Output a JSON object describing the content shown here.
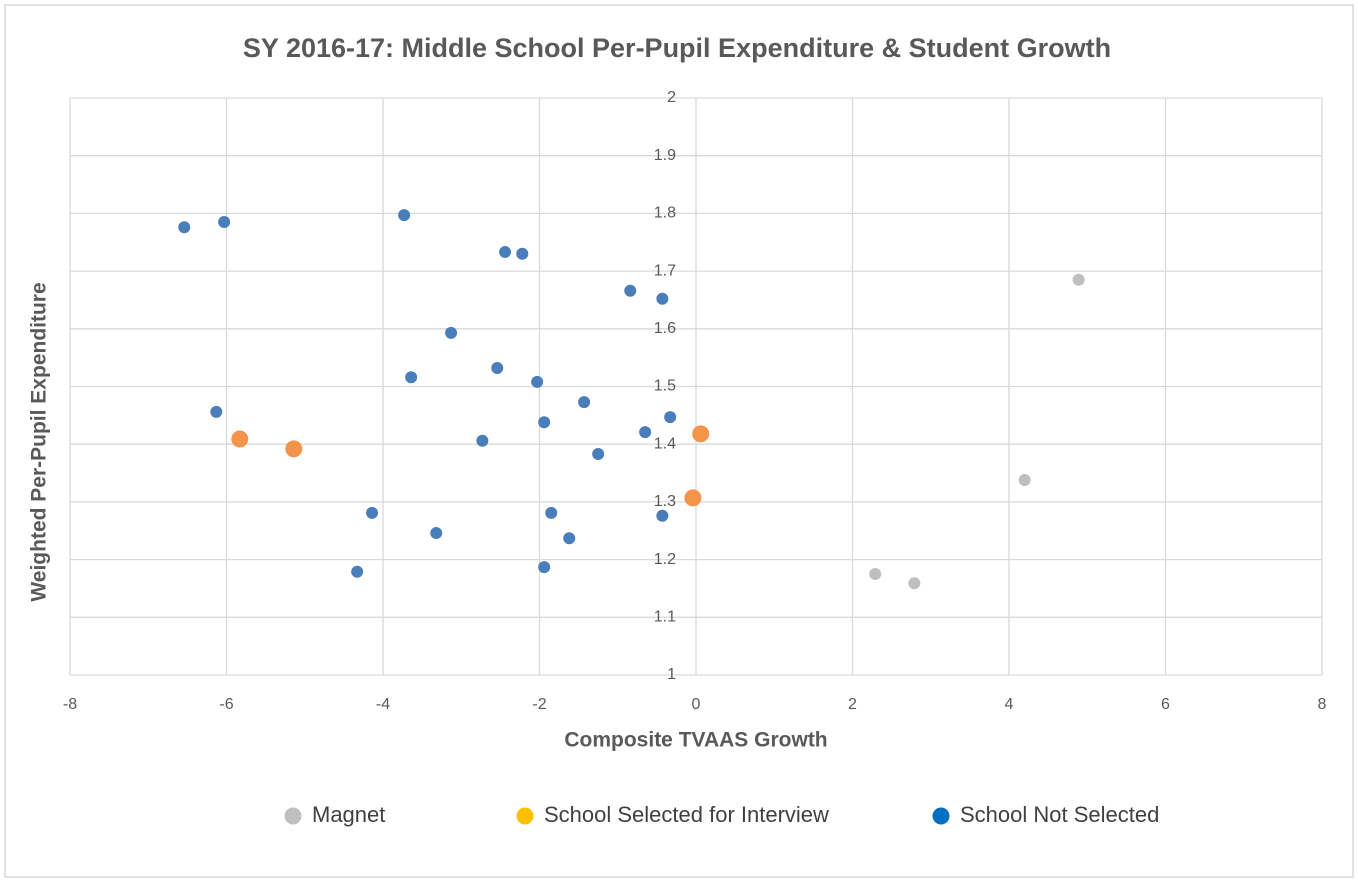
{
  "chart_data": {
    "type": "scatter",
    "title": "SY 2016-17: Middle School Per-Pupil Expenditure & Student Growth",
    "x_label": "Composite TVAAS Growth",
    "y_label": "Weighted Per-Pupil Expenditure",
    "xlim": [
      -8,
      8
    ],
    "xticks": [
      -8,
      -6,
      -4,
      -2,
      0,
      2,
      4,
      6,
      8
    ],
    "ylim": [
      1,
      2
    ],
    "yticks": [
      1,
      1.1,
      1.2,
      1.3,
      1.4,
      1.5,
      1.6,
      1.7,
      1.8,
      1.9,
      2
    ],
    "grid": true,
    "legend": "bottom",
    "series": [
      {
        "name": "Magnet",
        "color": "#bfbfbf",
        "legend_color": "#bfbfbf",
        "x": [
          4.89,
          4.2,
          2.29,
          2.79
        ],
        "values": [
          1.685,
          1.338,
          1.175,
          1.159
        ]
      },
      {
        "name": "School Selected for Interview",
        "color": "#f4934a",
        "legend_color": "#ffc000",
        "x": [
          -5.83,
          -5.14,
          0.06,
          -0.04
        ],
        "values": [
          1.409,
          1.392,
          1.418,
          1.307
        ]
      },
      {
        "name": "School Not Selected",
        "color": "#4a7ebb",
        "legend_color": "#0070c0",
        "x": [
          -6.54,
          -6.03,
          -3.73,
          -2.44,
          -2.22,
          -0.84,
          -0.43,
          -3.13,
          -2.54,
          -3.64,
          -2.03,
          -1.43,
          -6.13,
          -0.33,
          -1.94,
          -0.65,
          -2.73,
          -1.25,
          -4.14,
          -1.85,
          -0.43,
          -3.32,
          -1.62,
          -1.94,
          -4.33
        ],
        "values": [
          1.776,
          1.785,
          1.797,
          1.733,
          1.73,
          1.666,
          1.652,
          1.593,
          1.532,
          1.516,
          1.508,
          1.473,
          1.456,
          1.447,
          1.438,
          1.421,
          1.406,
          1.383,
          1.281,
          1.281,
          1.276,
          1.246,
          1.237,
          1.187,
          1.179
        ]
      }
    ]
  }
}
